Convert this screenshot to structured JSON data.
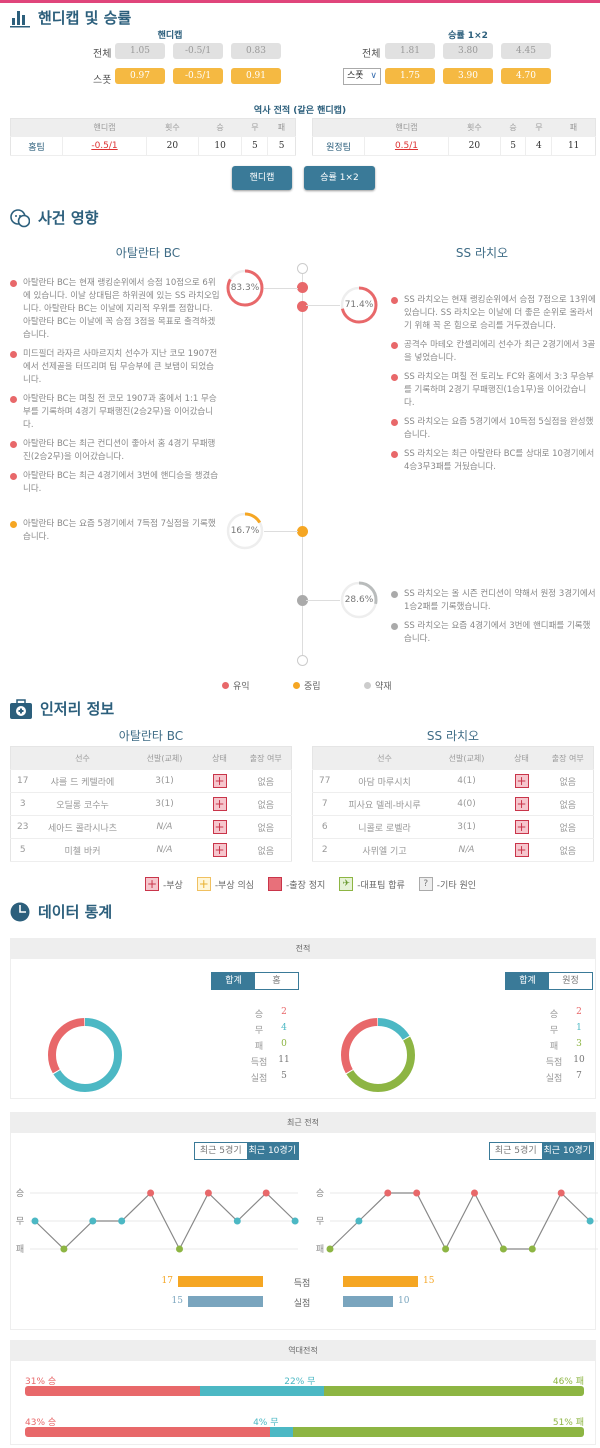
{
  "colors": {
    "win": "#e8686a",
    "draw": "#4cb8c4",
    "loss": "#8db543",
    "neutral": "#f5a623",
    "bad": "#b9bcbc",
    "accent": "#3a7a98"
  },
  "handicap": {
    "title": "핸디캡 및 승률",
    "hc_header": "핸디캡",
    "wl_header": "승률 1×2",
    "row_all": "전체",
    "row_spot": "스폿",
    "select_value": "스폿",
    "hc_all": [
      "1.05",
      "-0.5/1",
      "0.83"
    ],
    "hc_spot": [
      "0.97",
      "-0.5/1",
      "0.91"
    ],
    "wl_all": [
      "1.81",
      "3.80",
      "4.45"
    ],
    "wl_spot": [
      "1.75",
      "3.90",
      "4.70"
    ],
    "history_title": "역사 전적 (같은 핸디캡)",
    "cols": [
      "",
      "핸디캡",
      "횟수",
      "승",
      "무",
      "패"
    ],
    "home": [
      "홈팀",
      "-0.5/1",
      "20",
      "10",
      "5",
      "5"
    ],
    "away": [
      "원정팀",
      "0.5/1",
      "20",
      "5",
      "4",
      "11"
    ],
    "btn_hc": "핸디캡",
    "btn_wl": "승률 1×2"
  },
  "events": {
    "title": "사건 영향",
    "home_team": "아탈란타 BC",
    "away_team": "SS 라치오",
    "home_good_pct": "83.3%",
    "away_good_pct": "71.4%",
    "home_neutral_pct": "16.7%",
    "away_bad_pct": "28.6%",
    "home_good": [
      "아탈란타 BC는 현재 랭킹순위에서 승점 10점으로 6위에 있습니다. 이날 상대팀은 하위권에 있는 SS 라치오입니다. 아탈란타 BC는 이날에 지리적 우위를 점합니다. 아탈란타 BC는 이날에 꼭 승점 3점을 목표로 출격하겠습니다.",
      "미드필더 라자르 사마르지치 선수가 지난 코모 1907전에서 선제골을 터뜨리며 팀 무승부에 큰 보탬이 되었습니다.",
      "아탈란타 BC는 며칠 전 코모 1907과 홈에서 1:1 무승부를 기록하며 4경기 무패행진(2승2무)을 이어갔습니다.",
      "아탈란타 BC는 최근 컨디션이 좋아서 홈 4경기 무패행진(2승2무)을 이어갔습니다.",
      "아탈란타 BC는 최근 4경기에서 3번에 핸디승을 챙겼습니다."
    ],
    "home_neutral": [
      "아탈란타 BC는 요즘 5경기에서 7득점 7실점을 기록했습니다."
    ],
    "away_good": [
      "SS 라치오는 현재 랭킹순위에서 승점 7점으로 13위에 있습니다. SS 라치오는 이날에 더 좋은 순위로 올라서기 위해 꼭 온 힘으로 승리를 거두겠습니다.",
      "공격수 마테오 칸셀리에리 선수가 최근 2경기에서 3골을 넣었습니다.",
      "SS 라치오는 며칠 전 토리노 FC와 홈에서 3:3 무승부를 기록하며 2경기 무패행진(1승1무)을 이어갔습니다.",
      "SS 라치오는 요즘 5경기에서 10득점 5실점을 완성했습니다.",
      "SS 라치오는 최근 아탈란타 BC를 상대로 10경기에서 4승3무3패를 거뒀습니다."
    ],
    "away_bad": [
      "SS 라치오는 올 시즌 컨디션이 약해서 원정 3경기에서 1승2패를 기록했습니다.",
      "SS 라치오는 요즘 4경기에서 3번에 핸디패를 기록했습니다."
    ],
    "legend": [
      "유익",
      "중립",
      "약재"
    ]
  },
  "injury": {
    "title": "인저리 정보",
    "cols": [
      "선수",
      "선발(교체)",
      "상태",
      "출장 여부"
    ],
    "home": [
      [
        "17",
        "샤를 드 케텔라에",
        "3(1)",
        "없음"
      ],
      [
        "3",
        "오딜롱 코수누",
        "3(1)",
        "없음"
      ],
      [
        "23",
        "세아드 콜라시나츠",
        "N/A",
        "없음"
      ],
      [
        "5",
        "미첼 바커",
        "N/A",
        "없음"
      ]
    ],
    "away": [
      [
        "77",
        "아담 마루시치",
        "4(1)",
        "없음"
      ],
      [
        "7",
        "피사요 델레-바시루",
        "4(0)",
        "없음"
      ],
      [
        "6",
        "니콜로 로벨라",
        "3(1)",
        "없음"
      ],
      [
        "2",
        "사뮈엘 기고",
        "N/A",
        "없음"
      ]
    ],
    "legend": [
      "-부상",
      "-부상 의심",
      "-출장 정지",
      "-대표팀 합류",
      "-기타 원인"
    ]
  },
  "stats": {
    "title": "데이터 통계",
    "record_header": "전적",
    "home_toggle": [
      "합계",
      "홈"
    ],
    "away_toggle": [
      "합계",
      "원정"
    ],
    "labels": [
      "승",
      "무",
      "패",
      "득점",
      "실점"
    ],
    "home_values": [
      "2",
      "4",
      "0",
      "11",
      "5"
    ],
    "away_values": [
      "2",
      "1",
      "3",
      "10",
      "7"
    ],
    "recent_header": "최근 전적",
    "recent_toggle": [
      "최근 5경기",
      "최근 10경기"
    ],
    "axis": [
      "승",
      "무",
      "패"
    ],
    "home_form": [
      "무",
      "패",
      "무",
      "무",
      "승",
      "패",
      "승",
      "무",
      "승",
      "무"
    ],
    "away_form": [
      "패",
      "무",
      "승",
      "승",
      "패",
      "승",
      "패",
      "패",
      "승",
      "무"
    ],
    "goals_label": "득점",
    "conceded_label": "실점",
    "home_goals": "17",
    "home_conceded": "15",
    "away_goals": "15",
    "away_conceded": "10",
    "h2h_header": "역대전적",
    "h2h": [
      {
        "win": "31% 승",
        "draw": "22% 무",
        "loss": "46% 패",
        "w": 31,
        "d": 22,
        "l": 46
      },
      {
        "win": "43% 승",
        "draw": "4% 무",
        "loss": "51% 패",
        "w": 43,
        "d": 4,
        "l": 51
      }
    ]
  }
}
